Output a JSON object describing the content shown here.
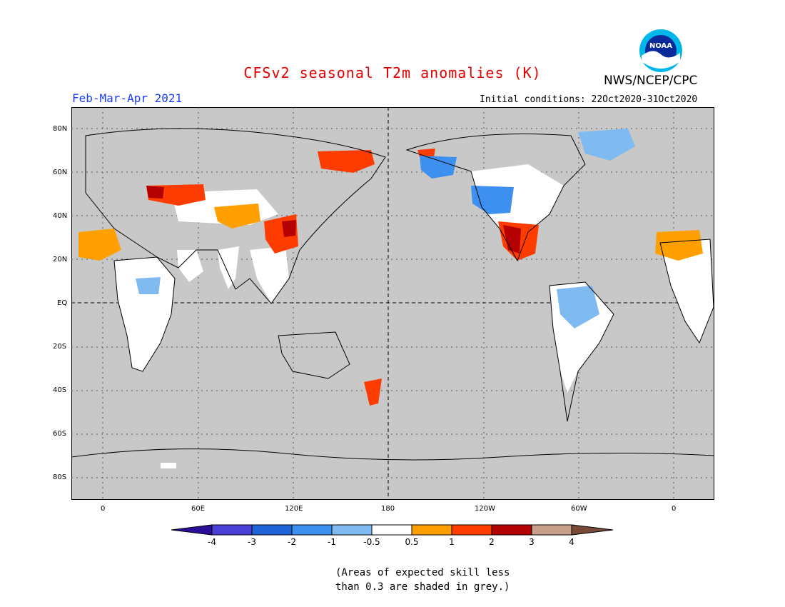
{
  "title": "CFSv2 seasonal T2m anomalies (K)",
  "agency": "NWS/NCEP/CPC",
  "logo_text": "NOAA",
  "period": "Feb-Mar-Apr 2021",
  "initial_conditions": "Initial conditions: 22Oct2020-31Oct2020",
  "lat_ticks": [
    "80N",
    "60N",
    "40N",
    "20N",
    "EQ",
    "20S",
    "40S",
    "60S",
    "80S"
  ],
  "lon_ticks": [
    "0",
    "60E",
    "120E",
    "180",
    "120W",
    "60W",
    "0"
  ],
  "colorbar": {
    "labels": [
      "-4",
      "-3",
      "-2",
      "-1",
      "-0.5",
      "0.5",
      "1",
      "2",
      "3",
      "4"
    ],
    "colors": [
      "#2b0d9c",
      "#4a3fd6",
      "#1f64d9",
      "#3d8ff0",
      "#7fbaf0",
      "#ffffff",
      "#ffa000",
      "#ff3c00",
      "#b40000",
      "#c8a08c",
      "#7a4a38"
    ]
  },
  "note_line1": "(Areas of expected skill less",
  "note_line2": "than 0.3 are shaded in grey.)",
  "colors": {
    "grey": "#c8c8c8",
    "title_red": "#e60000",
    "period_blue": "#1a3cff"
  }
}
